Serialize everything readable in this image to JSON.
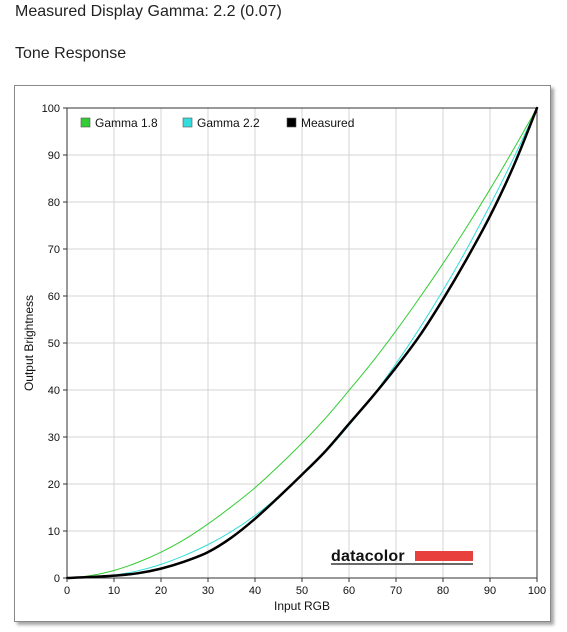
{
  "page": {
    "header": "Measured Display Gamma: 2.2 (0.07)",
    "section_title": "Tone Response"
  },
  "logo": {
    "text": "datacolor",
    "bar_color": "#e8403c"
  },
  "chart_data": {
    "type": "line",
    "title": "",
    "xlabel": "Input RGB",
    "ylabel": "Output Brightness",
    "xlim": [
      0,
      100
    ],
    "ylim": [
      0,
      100
    ],
    "x_ticks": [
      0,
      10,
      20,
      30,
      40,
      50,
      60,
      70,
      80,
      90,
      100
    ],
    "y_ticks": [
      0,
      10,
      20,
      30,
      40,
      50,
      60,
      70,
      80,
      90,
      100
    ],
    "grid": true,
    "legend_position": "top-left",
    "x": [
      0,
      5,
      10,
      15,
      20,
      25,
      30,
      35,
      40,
      45,
      50,
      55,
      60,
      65,
      70,
      75,
      80,
      85,
      90,
      95,
      100
    ],
    "series": [
      {
        "name": "Gamma 1.8",
        "color": "#33cc33",
        "width": 1,
        "values": [
          0,
          0.5,
          1.6,
          3.3,
          5.5,
          8.2,
          11.5,
          15.2,
          19.2,
          23.8,
          28.7,
          34.0,
          39.9,
          46.0,
          52.6,
          59.6,
          66.9,
          74.6,
          82.7,
          91.2,
          100
        ]
      },
      {
        "name": "Gamma 2.2",
        "color": "#33dddd",
        "width": 1,
        "values": [
          0,
          0.1,
          0.6,
          1.5,
          2.9,
          4.8,
          7.1,
          9.9,
          13.3,
          17.3,
          21.8,
          26.8,
          32.5,
          38.7,
          45.6,
          53.1,
          61.2,
          69.9,
          79.3,
          89.3,
          100
        ]
      },
      {
        "name": "Measured",
        "color": "#000000",
        "width": 2.5,
        "values": [
          0,
          0.2,
          0.5,
          1.0,
          2.0,
          3.5,
          5.5,
          8.6,
          12.6,
          17.2,
          22.0,
          27.0,
          32.8,
          38.6,
          44.8,
          51.5,
          59.3,
          67.8,
          77.0,
          87.6,
          100
        ]
      }
    ]
  }
}
